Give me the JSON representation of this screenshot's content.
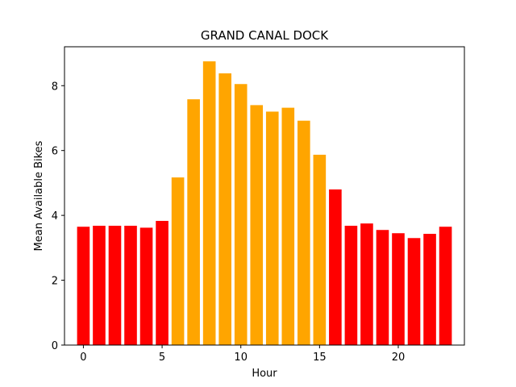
{
  "chart_data": {
    "type": "bar",
    "title": "GRAND CANAL DOCK",
    "xlabel": "Hour",
    "ylabel": "Mean Available Bikes",
    "x": [
      0,
      1,
      2,
      3,
      4,
      5,
      6,
      7,
      8,
      9,
      10,
      11,
      12,
      13,
      14,
      15,
      16,
      17,
      18,
      19,
      20,
      21,
      22,
      23
    ],
    "values": [
      3.65,
      3.68,
      3.68,
      3.68,
      3.62,
      3.83,
      5.17,
      7.58,
      8.75,
      8.38,
      8.05,
      7.4,
      7.2,
      7.32,
      6.92,
      5.87,
      4.8,
      3.68,
      3.75,
      3.55,
      3.45,
      3.3,
      3.43,
      3.65
    ],
    "colors": [
      "#ff0000",
      "#ff0000",
      "#ff0000",
      "#ff0000",
      "#ff0000",
      "#ff0000",
      "#ffa500",
      "#ffa500",
      "#ffa500",
      "#ffa500",
      "#ffa500",
      "#ffa500",
      "#ffa500",
      "#ffa500",
      "#ffa500",
      "#ffa500",
      "#ff0000",
      "#ff0000",
      "#ff0000",
      "#ff0000",
      "#ff0000",
      "#ff0000",
      "#ff0000",
      "#ff0000"
    ],
    "xlim": [
      -1.2,
      24.2
    ],
    "ylim": [
      0,
      9.2
    ],
    "xticks": [
      0,
      5,
      10,
      15,
      20
    ],
    "yticks": [
      0,
      2,
      4,
      6,
      8
    ],
    "grid": false
  }
}
